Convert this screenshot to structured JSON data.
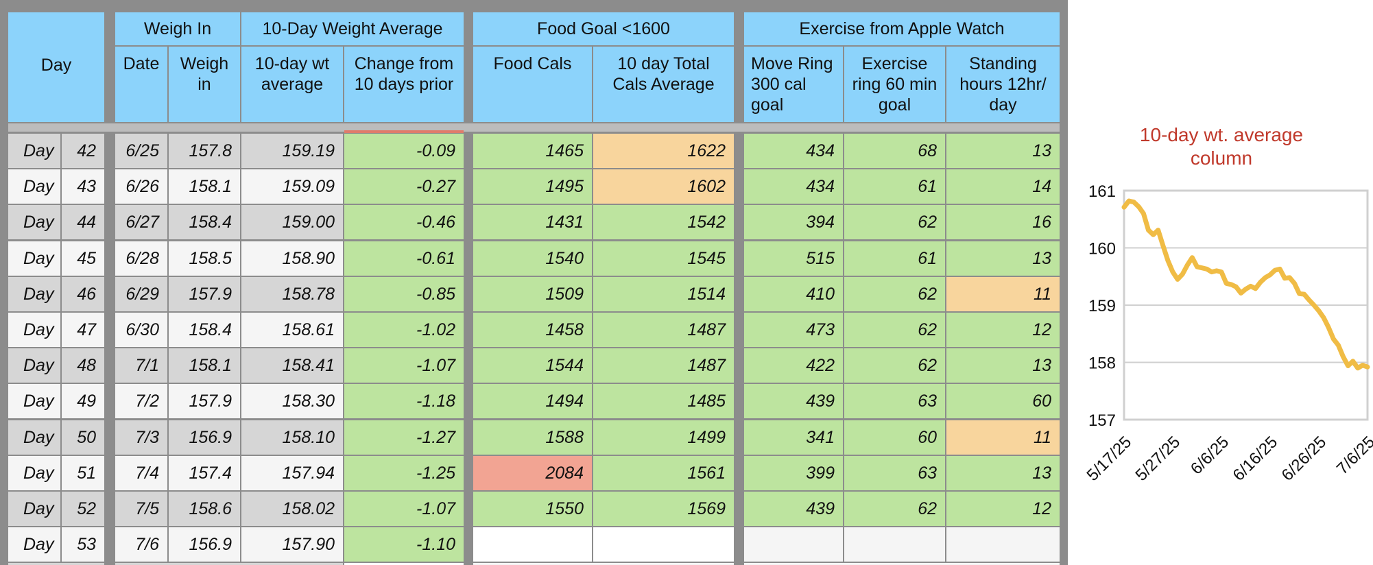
{
  "colors": {
    "header": "#8cd3fb",
    "green": "#bde49f",
    "orange": "#f8d59d",
    "red": "#f2a493",
    "row_gray": "#d6d6d6",
    "row_light": "#f5f5f5",
    "white": "#ffffff",
    "chart_line": "#f0bc45",
    "chart_title": "#c0392b"
  },
  "groups": [
    {
      "key": "weigh_in",
      "label": "Weigh In"
    },
    {
      "key": "wt_avg",
      "label": "10-Day Weight Average"
    },
    {
      "key": "food",
      "label": "Food Goal <1600"
    },
    {
      "key": "exercise",
      "label": "Exercise from Apple Watch"
    }
  ],
  "columns": [
    {
      "key": "day",
      "label": "Day"
    },
    {
      "key": "date",
      "label": "Date"
    },
    {
      "key": "weigh",
      "label": "Weigh\nin"
    },
    {
      "key": "avg",
      "label": "10-day wt\naverage"
    },
    {
      "key": "change",
      "label": "Change from\n10 days prior"
    },
    {
      "key": "food",
      "label": "Food Cals"
    },
    {
      "key": "total",
      "label": "10 day Total\nCals Average"
    },
    {
      "key": "move",
      "label": "Move Ring\n300 cal\ngoal"
    },
    {
      "key": "exercise",
      "label": "Exercise\nring 60 min\ngoal"
    },
    {
      "key": "stand",
      "label": "Standing\nhours 12hr/\nday"
    }
  ],
  "rows": [
    {
      "day_label": "Day",
      "day": "42",
      "date": "6/25",
      "weigh": "157.8",
      "avg": "159.19",
      "change": "-0.09",
      "food": "1465",
      "total": "1622",
      "move": "434",
      "exercise": "68",
      "stand": "13",
      "total_flag": "orange"
    },
    {
      "day_label": "Day",
      "day": "43",
      "date": "6/26",
      "weigh": "158.1",
      "avg": "159.09",
      "change": "-0.27",
      "food": "1495",
      "total": "1602",
      "move": "434",
      "exercise": "61",
      "stand": "14",
      "total_flag": "orange"
    },
    {
      "day_label": "Day",
      "day": "44",
      "date": "6/27",
      "weigh": "158.4",
      "avg": "159.00",
      "change": "-0.46",
      "food": "1431",
      "total": "1542",
      "move": "394",
      "exercise": "62",
      "stand": "16"
    },
    {
      "day_label": "Day",
      "day": "45",
      "date": "6/28",
      "weigh": "158.5",
      "avg": "158.90",
      "change": "-0.61",
      "food": "1540",
      "total": "1545",
      "move": "515",
      "exercise": "61",
      "stand": "13"
    },
    {
      "day_label": "Day",
      "day": "46",
      "date": "6/29",
      "weigh": "157.9",
      "avg": "158.78",
      "change": "-0.85",
      "food": "1509",
      "total": "1514",
      "move": "410",
      "exercise": "62",
      "stand": "11",
      "stand_flag": "orange"
    },
    {
      "day_label": "Day",
      "day": "47",
      "date": "6/30",
      "weigh": "158.4",
      "avg": "158.61",
      "change": "-1.02",
      "food": "1458",
      "total": "1487",
      "move": "473",
      "exercise": "62",
      "stand": "12"
    },
    {
      "day_label": "Day",
      "day": "48",
      "date": "7/1",
      "weigh": "158.1",
      "avg": "158.41",
      "change": "-1.07",
      "food": "1544",
      "total": "1487",
      "move": "422",
      "exercise": "62",
      "stand": "13"
    },
    {
      "day_label": "Day",
      "day": "49",
      "date": "7/2",
      "weigh": "157.9",
      "avg": "158.30",
      "change": "-1.18",
      "food": "1494",
      "total": "1485",
      "move": "439",
      "exercise": "63",
      "stand": "60"
    },
    {
      "day_label": "Day",
      "day": "50",
      "date": "7/3",
      "weigh": "156.9",
      "avg": "158.10",
      "change": "-1.27",
      "food": "1588",
      "total": "1499",
      "move": "341",
      "exercise": "60",
      "stand": "11",
      "stand_flag": "orange"
    },
    {
      "day_label": "Day",
      "day": "51",
      "date": "7/4",
      "weigh": "157.4",
      "avg": "157.94",
      "change": "-1.25",
      "food": "2084",
      "total": "1561",
      "move": "399",
      "exercise": "63",
      "stand": "13",
      "food_flag": "red"
    },
    {
      "day_label": "Day",
      "day": "52",
      "date": "7/5",
      "weigh": "158.6",
      "avg": "158.02",
      "change": "-1.07",
      "food": "1550",
      "total": "1569",
      "move": "439",
      "exercise": "62",
      "stand": "12"
    },
    {
      "day_label": "Day",
      "day": "53",
      "date": "7/6",
      "weigh": "156.9",
      "avg": "157.90",
      "change": "-1.10",
      "food": "",
      "total": "",
      "move": "",
      "exercise": "",
      "stand": ""
    }
  ],
  "chart_data": {
    "type": "line",
    "title": "10-day wt. average\ncolumn",
    "xlabel": "",
    "ylabel": "",
    "x_ticks": [
      "5/17/25",
      "5/27/25",
      "6/6/25",
      "6/16/25",
      "6/26/25",
      "7/6/25"
    ],
    "y_ticks": [
      157,
      158,
      159,
      160,
      161
    ],
    "ylim": [
      157,
      161
    ],
    "xlim": [
      0,
      50
    ],
    "grid": true,
    "series": [
      {
        "x": [
          0,
          1,
          2,
          3,
          4,
          5,
          6,
          7,
          8,
          9,
          10,
          11,
          12,
          13,
          14,
          15,
          16,
          17,
          18,
          19,
          20,
          21,
          22,
          23,
          24,
          25,
          26,
          27,
          28,
          29,
          30,
          31,
          32,
          33,
          34,
          35,
          36,
          37,
          38,
          39,
          40,
          41,
          42,
          43,
          44,
          45,
          46,
          47,
          48,
          49,
          50
        ],
        "values": [
          160.71,
          160.82,
          160.8,
          160.72,
          160.6,
          160.31,
          160.23,
          160.31,
          160.04,
          159.78,
          159.58,
          159.45,
          159.54,
          159.7,
          159.83,
          159.67,
          159.65,
          159.63,
          159.58,
          159.6,
          159.58,
          159.38,
          159.36,
          159.32,
          159.21,
          159.28,
          159.33,
          159.29,
          159.4,
          159.48,
          159.53,
          159.61,
          159.63,
          159.47,
          159.48,
          159.38,
          159.2,
          159.19,
          159.09,
          159.0,
          158.9,
          158.78,
          158.61,
          158.41,
          158.3,
          158.1,
          157.94,
          158.02,
          157.9,
          157.95,
          157.92
        ]
      }
    ]
  }
}
